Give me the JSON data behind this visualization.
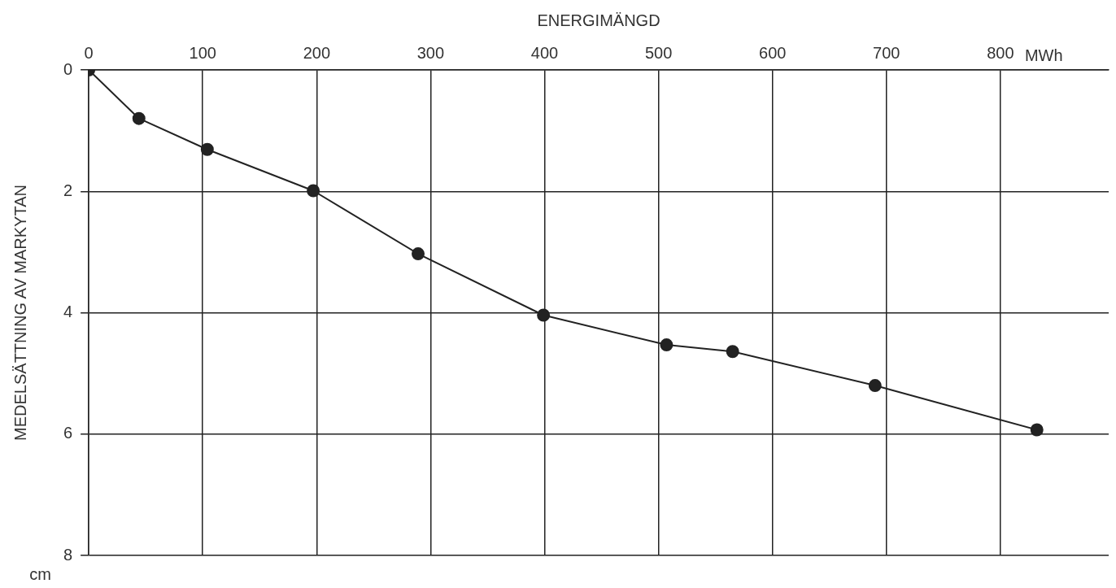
{
  "chart_data": {
    "type": "line",
    "xlabel": "ENERGIMÄNGD",
    "ylabel": "MEDELSÄTTNING AV MARKYTAN",
    "x": [
      0,
      44,
      104,
      197,
      289,
      399,
      507,
      565,
      690,
      832
    ],
    "series": [
      {
        "color": "#222222",
        "values": [
          0,
          0.8,
          1.31,
          1.99,
          3.03,
          4.04,
          4.53,
          4.64,
          5.2,
          5.93
        ]
      }
    ],
    "xlim": [
      0,
      895
    ],
    "xticks": [
      0,
      100,
      200,
      300,
      400,
      500,
      600,
      700,
      800
    ],
    "ylim": [
      8,
      0
    ],
    "yticks": [
      0,
      2,
      4,
      6,
      8
    ],
    "grid": true,
    "marker": "circle",
    "line_style": "solid",
    "annotations": [
      "MWh",
      "cm"
    ]
  }
}
